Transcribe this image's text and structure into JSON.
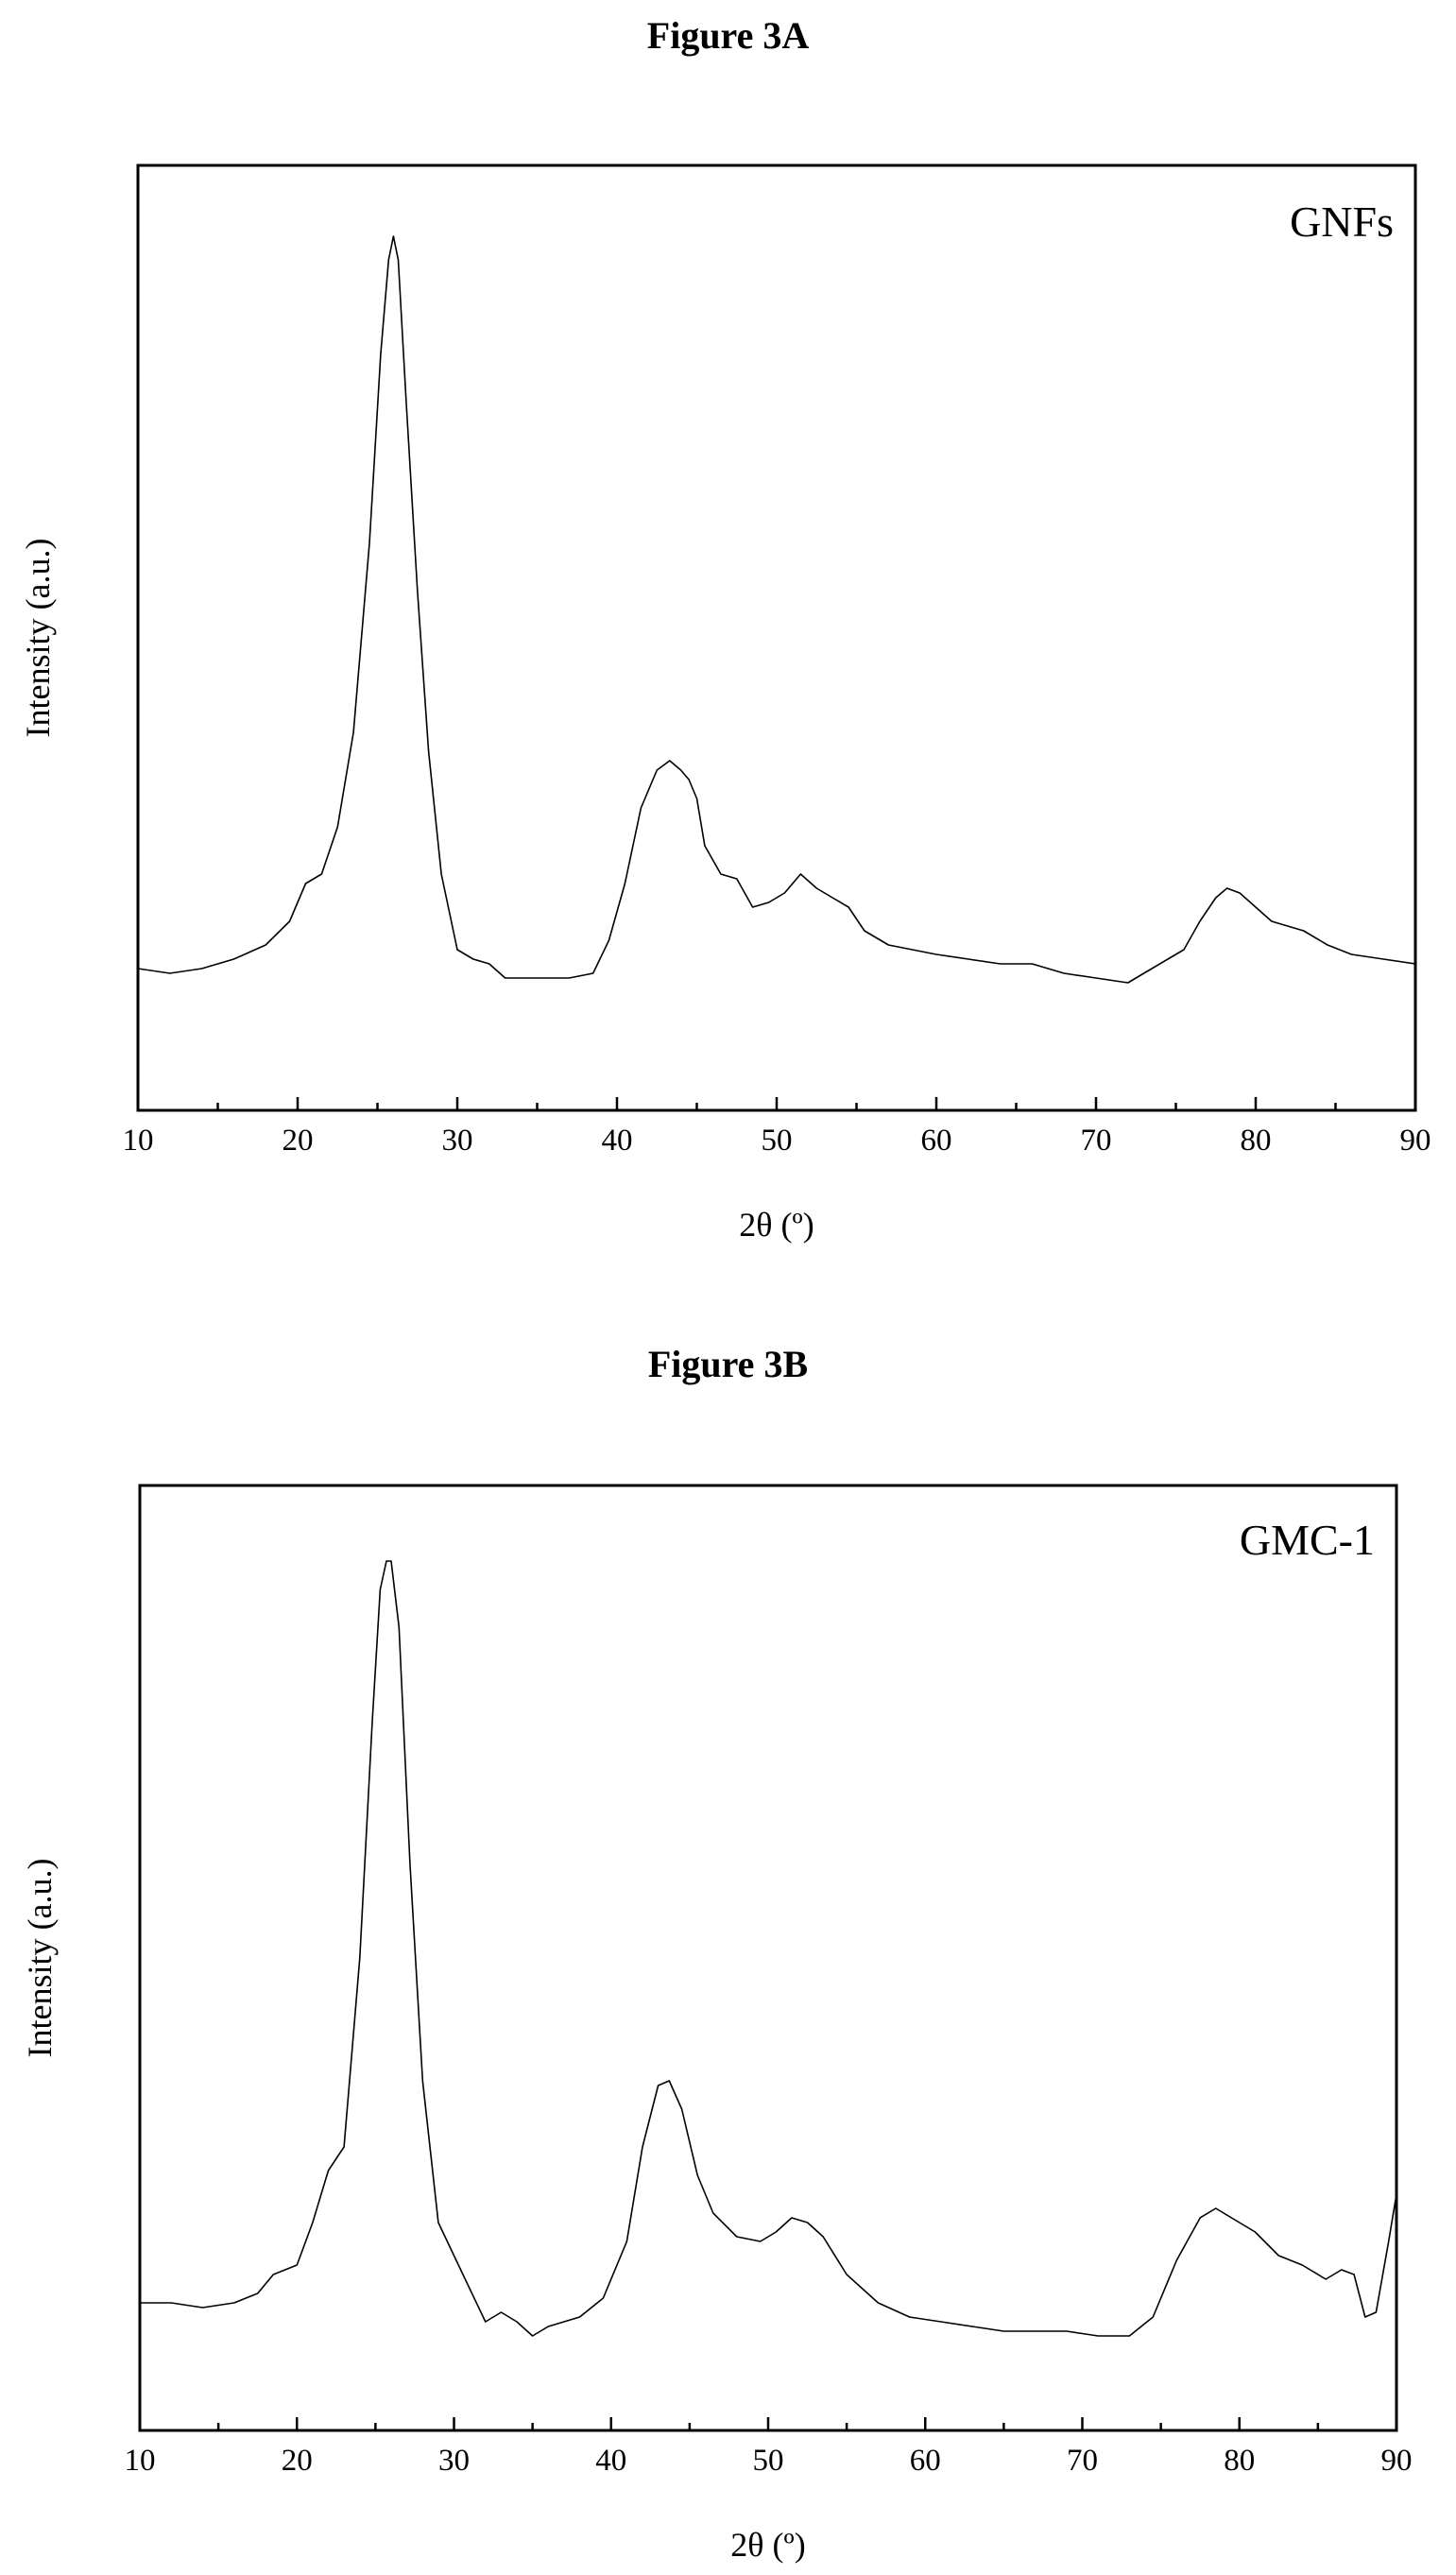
{
  "chart_data": [
    {
      "type": "line",
      "figure_title": "Figure 3A",
      "panel_label": "GNFs",
      "xlabel": "2θ (º)",
      "ylabel": "Intensity (a.u.)",
      "xlim": [
        10,
        90
      ],
      "ylim": [
        0,
        100
      ],
      "xticks": [
        10,
        20,
        30,
        40,
        50,
        60,
        70,
        80,
        90
      ],
      "y_tick_labels": false,
      "grid": false,
      "series": [
        {
          "x": [
            10,
            12,
            14,
            16,
            18,
            19.5,
            20.5,
            21.5,
            22.5,
            23.5,
            24.5,
            25.2,
            25.7,
            26,
            26.3,
            26.8,
            27.5,
            28.2,
            29,
            30,
            31,
            32,
            33,
            35,
            37,
            38.5,
            39.5,
            40.5,
            41.5,
            42.5,
            43.3,
            44,
            44.5,
            45,
            45.5,
            46.5,
            47.5,
            48.5,
            49.5,
            50.5,
            51.5,
            52.5,
            53.5,
            54.5,
            55.5,
            57,
            58.5,
            60,
            62,
            64,
            66,
            68,
            70,
            72,
            73.5,
            74.5,
            75.5,
            76.5,
            77.5,
            78.2,
            79,
            80,
            81,
            82,
            83,
            84.5,
            86,
            88,
            90
          ],
          "y": [
            15,
            14.5,
            15,
            16,
            17.5,
            20,
            24,
            25,
            30,
            40,
            60,
            80,
            90,
            92.5,
            90,
            75,
            55,
            38,
            25,
            17,
            16,
            15.5,
            14,
            14,
            14,
            14.5,
            18,
            24,
            32,
            36,
            37,
            36,
            35,
            33,
            28,
            25,
            24.5,
            21.5,
            22,
            23,
            25,
            23.5,
            22.5,
            21.5,
            19,
            17.5,
            17,
            16.5,
            16,
            15.5,
            15.5,
            14.5,
            14,
            13.5,
            15,
            16,
            17,
            20,
            22.5,
            23.5,
            23,
            21.5,
            20,
            19.5,
            19,
            17.5,
            16.5,
            16,
            15.5
          ]
        }
      ]
    },
    {
      "type": "line",
      "figure_title": "Figure 3B",
      "panel_label": "GMC-1",
      "xlabel": "2θ (º)",
      "ylabel": "Intensity (a.u.)",
      "xlim": [
        10,
        90
      ],
      "ylim": [
        0,
        100
      ],
      "xticks": [
        10,
        20,
        30,
        40,
        50,
        60,
        70,
        80,
        90
      ],
      "y_tick_labels": false,
      "grid": false,
      "series": [
        {
          "x": [
            10,
            12,
            14,
            16,
            17.5,
            18.5,
            20,
            21,
            22,
            23,
            24,
            24.8,
            25.3,
            25.7,
            26,
            26.5,
            27.2,
            28,
            29,
            30,
            31,
            32,
            33,
            34,
            35,
            36,
            37,
            38,
            39.5,
            41,
            42,
            43,
            43.7,
            44.5,
            45.5,
            46.5,
            48,
            49.5,
            50.5,
            51.5,
            52.5,
            53.5,
            55,
            57,
            59,
            61,
            63,
            65,
            67,
            69,
            71,
            73,
            74.5,
            76,
            77.5,
            78.5,
            79.5,
            81,
            82.5,
            84,
            85.5,
            86.5,
            87.3,
            88,
            88.7,
            89.5,
            90
          ],
          "y": [
            13.5,
            13.5,
            13,
            13.5,
            14.5,
            16.5,
            17.5,
            22,
            27.5,
            30,
            50,
            75,
            89,
            92,
            92,
            85,
            60,
            37,
            22,
            18.5,
            15,
            11.5,
            12.5,
            11.5,
            10,
            11,
            11.5,
            12,
            14,
            20,
            30,
            36.5,
            37,
            34,
            27,
            23,
            20.5,
            20,
            21,
            22.5,
            22,
            20.5,
            16.5,
            13.5,
            12,
            11.5,
            11,
            10.5,
            10.5,
            10.5,
            10,
            10,
            12,
            18,
            22.5,
            23.5,
            22.5,
            21,
            18.5,
            17.5,
            16,
            17,
            16.5,
            12,
            12.5,
            20,
            25
          ]
        }
      ]
    }
  ]
}
